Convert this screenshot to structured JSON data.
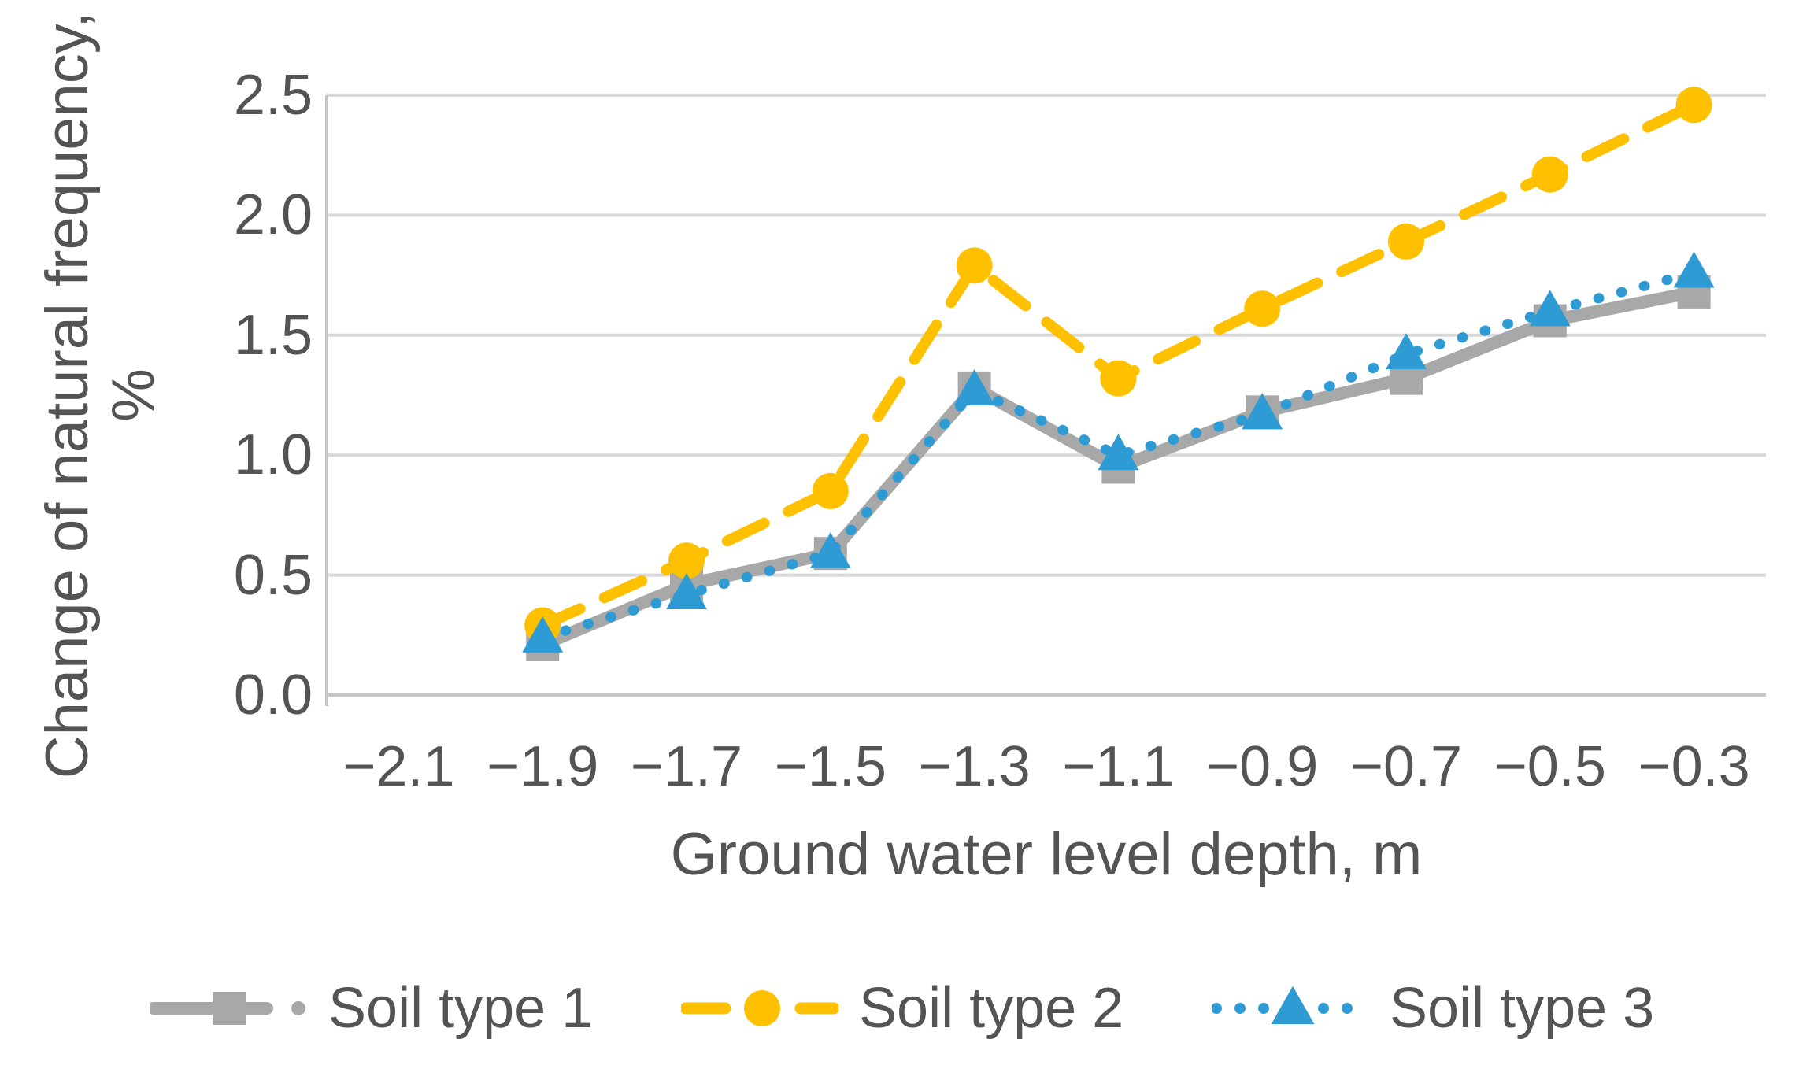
{
  "chart_data": {
    "type": "line",
    "title": "",
    "xlabel": "Ground water level depth, m",
    "ylabel_line1": "Change of natural frequency,",
    "ylabel_line2": "%",
    "x_tick_labels": [
      "−2.1",
      "−1.9",
      "−1.7",
      "−1.5",
      "−1.3",
      "−1.1",
      "−0.9",
      "−0.7",
      "−0.5",
      "−0.3"
    ],
    "y_tick_labels": [
      "0.0",
      "0.5",
      "1.0",
      "1.5",
      "2.0",
      "2.5"
    ],
    "ylim": [
      0,
      2.5
    ],
    "grid": "horizontal",
    "legend_position": "bottom",
    "series": [
      {
        "name": "Soil type 1",
        "color": "#A8A8A8",
        "marker": "square",
        "line_style": "solid",
        "values": [
          null,
          0.21,
          0.46,
          0.59,
          1.28,
          0.95,
          1.18,
          1.32,
          1.56,
          1.68
        ]
      },
      {
        "name": "Soil type 2",
        "color": "#FFC000",
        "marker": "circle",
        "line_style": "dashed",
        "values": [
          null,
          0.29,
          0.56,
          0.85,
          1.79,
          1.32,
          1.61,
          1.89,
          2.17,
          2.46
        ]
      },
      {
        "name": "Soil type 3",
        "color": "#2E9BD5",
        "marker": "triangle",
        "line_style": "dotted",
        "values": [
          null,
          0.24,
          0.42,
          0.59,
          1.27,
          1.0,
          1.17,
          1.42,
          1.6,
          1.76
        ]
      }
    ]
  },
  "colors": {
    "grid": "#D9D9D9",
    "axis": "#C6C6C6",
    "text": "#545454",
    "background": "#FFFFFF"
  }
}
